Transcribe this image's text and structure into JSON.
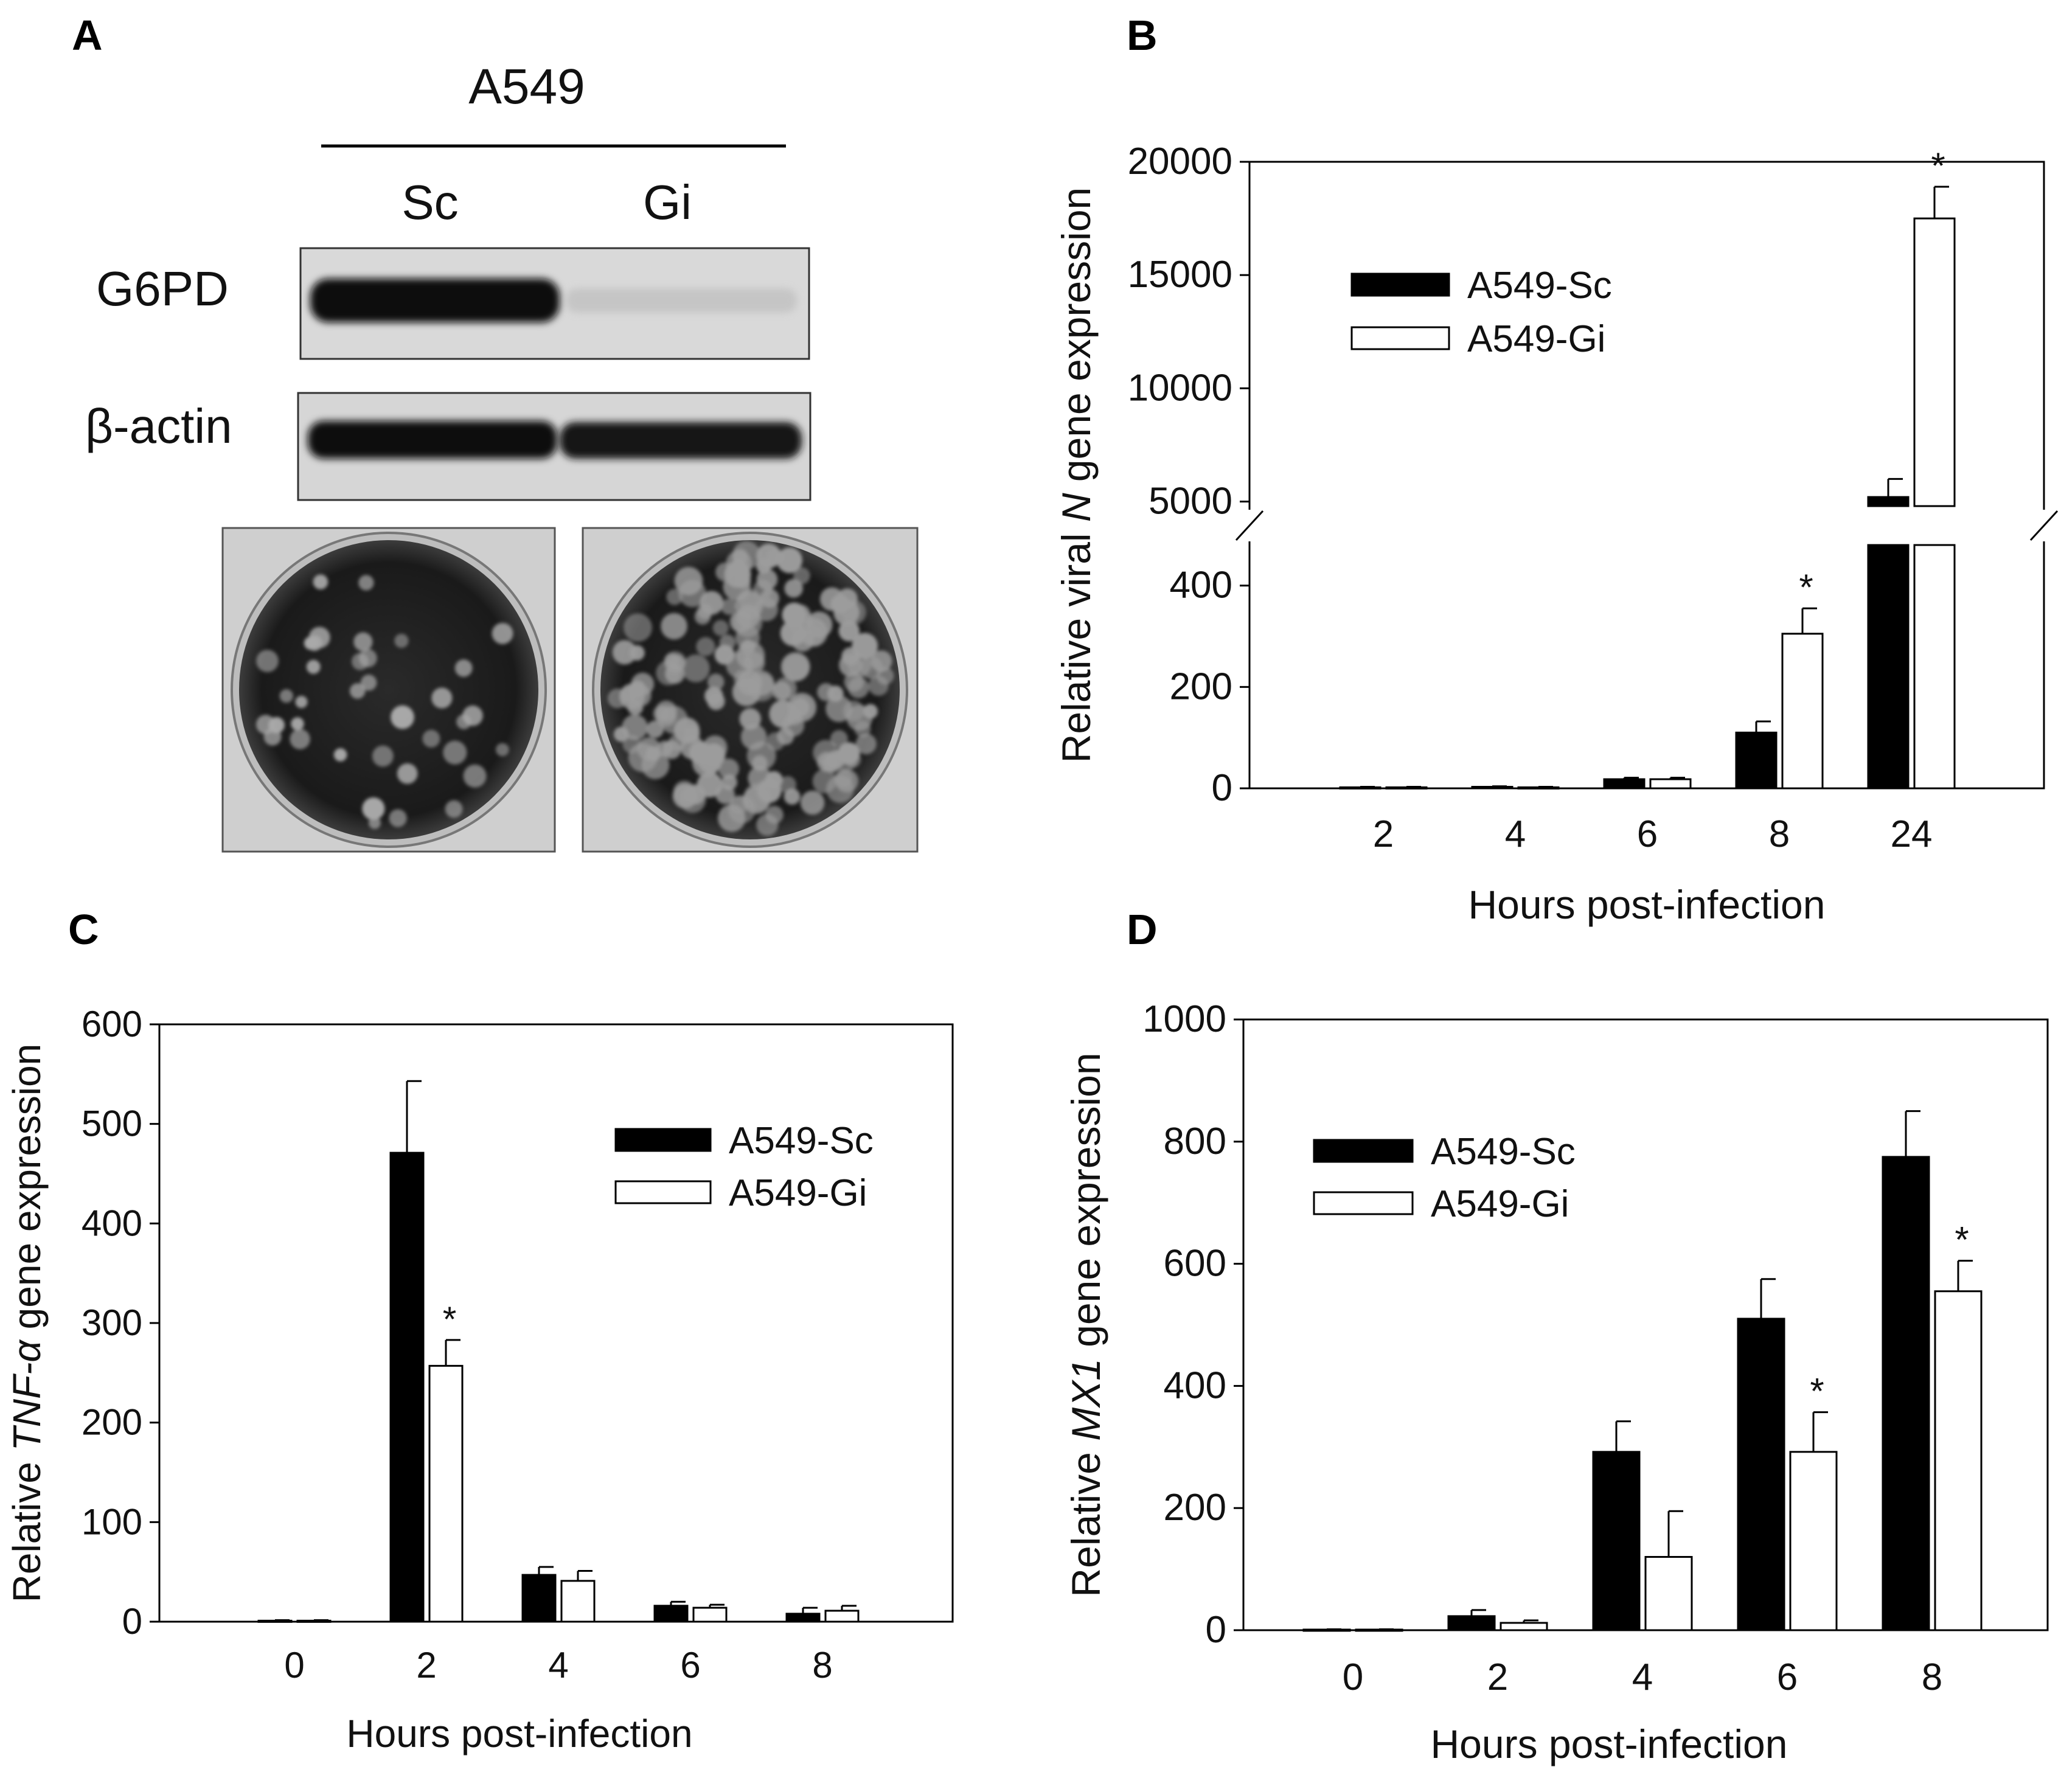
{
  "panels": {
    "A": {
      "letter": "A",
      "cell_line": "A549",
      "lanes": [
        "Sc",
        "Gi"
      ],
      "rows": [
        "G6PD",
        "β-actin"
      ]
    },
    "B": {
      "letter": "B"
    },
    "C": {
      "letter": "C"
    },
    "D": {
      "letter": "D"
    }
  },
  "colors": {
    "sc": "#000000",
    "gi": "#ffffff",
    "outline": "#000000"
  },
  "chart_data": [
    {
      "id": "B",
      "type": "bar",
      "title": "",
      "xlabel": "Hours post-infection",
      "ylabel": "Relative viral N gene expression",
      "ylabel_parts": [
        "Relative viral ",
        "N",
        " gene expression"
      ],
      "categories": [
        "2",
        "4",
        "6",
        "8",
        "24"
      ],
      "series": [
        {
          "name": "A549-Sc",
          "values": [
            2,
            3,
            18,
            110,
            5200
          ],
          "errors": [
            1,
            1,
            3,
            22,
            800
          ]
        },
        {
          "name": "A549-Gi",
          "values": [
            2,
            2,
            18,
            305,
            17500
          ],
          "errors": [
            1,
            1,
            3,
            50,
            1400
          ]
        }
      ],
      "significant": [
        [],
        [
          false,
          false,
          false,
          true,
          true
        ]
      ],
      "broken_axis": {
        "lower": [
          0,
          480
        ],
        "upper": [
          4800,
          20000
        ]
      },
      "yticks_lower": [
        0,
        200,
        400
      ],
      "yticks_upper": [
        5000,
        10000,
        15000,
        20000
      ],
      "legend": "upper-left"
    },
    {
      "id": "C",
      "type": "bar",
      "title": "",
      "xlabel": "Hours post-infection",
      "ylabel": "Relative TNF-α gene expression",
      "ylabel_parts": [
        "Relative ",
        "TNF-α",
        " gene expression"
      ],
      "categories": [
        "0",
        "2",
        "4",
        "6",
        "8"
      ],
      "series": [
        {
          "name": "A549-Sc",
          "values": [
            1,
            471,
            47,
            16,
            8
          ],
          "errors": [
            0.5,
            72,
            8,
            4,
            6
          ]
        },
        {
          "name": "A549-Gi",
          "values": [
            1,
            257,
            41,
            14,
            11
          ],
          "errors": [
            0.5,
            26,
            10,
            3,
            5
          ]
        }
      ],
      "significant": [
        [],
        [
          false,
          true,
          false,
          false,
          false
        ]
      ],
      "ylim": [
        0,
        600
      ],
      "yticks": [
        0,
        100,
        200,
        300,
        400,
        500,
        600
      ],
      "legend": "upper-right"
    },
    {
      "id": "D",
      "type": "bar",
      "title": "",
      "xlabel": "Hours post-infection",
      "ylabel": "Relative MX1 gene expression",
      "ylabel_parts": [
        "Relative ",
        "MX1",
        " gene expression"
      ],
      "categories": [
        "0",
        "2",
        "4",
        "6",
        "8"
      ],
      "series": [
        {
          "name": "A549-Sc",
          "values": [
            1,
            23,
            292,
            510,
            775
          ],
          "errors": [
            0.5,
            10,
            50,
            65,
            75
          ]
        },
        {
          "name": "A549-Gi",
          "values": [
            1,
            12,
            120,
            292,
            555
          ],
          "errors": [
            0.5,
            4,
            75,
            65,
            50
          ]
        }
      ],
      "significant": [
        [],
        [
          false,
          false,
          false,
          true,
          true
        ]
      ],
      "ylim": [
        0,
        1000
      ],
      "yticks": [
        0,
        200,
        400,
        600,
        800,
        1000
      ],
      "legend": "upper-left"
    }
  ]
}
